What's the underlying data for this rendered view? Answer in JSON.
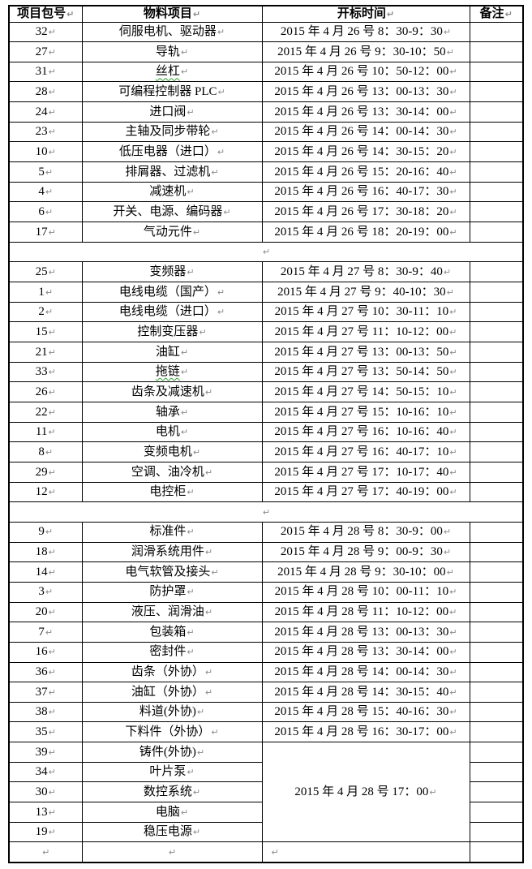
{
  "colors": {
    "border": "#000000",
    "text": "#000000",
    "paragraph_mark": "#8a8a8a",
    "spellcheck_squiggle": "#2f9e2f",
    "background": "#ffffff"
  },
  "table": {
    "mark": "↵",
    "headers": [
      "项目包号",
      "物料项目",
      "开标时间",
      "备注"
    ],
    "sections": [
      {
        "type": "data",
        "rows": [
          {
            "pkg": "32",
            "item": "伺服电机、驱动器",
            "time": "2015 年 4 月 26 号 8：30-9：30"
          },
          {
            "pkg": "27",
            "item": "导轨",
            "time": "2015 年 4 月 26 号 9：30-10：50"
          },
          {
            "pkg": "31",
            "item": "丝杠",
            "squiggle": true,
            "time": "2015 年 4 月 26 号 10：50-12：00"
          },
          {
            "pkg": "28",
            "item": "可编程控制器 PLC",
            "time": "2015 年 4 月 26 号 13：00-13：30"
          },
          {
            "pkg": "24",
            "item": "进口阀",
            "time": "2015 年 4 月 26 号 13：30-14：00"
          },
          {
            "pkg": "23",
            "item": "主轴及同步带轮",
            "time": "2015 年 4 月 26 号 14：00-14：30"
          },
          {
            "pkg": "10",
            "item": "低压电器（进口）",
            "time": "2015 年 4 月 26 号 14：30-15：20"
          },
          {
            "pkg": "5",
            "item": "排屑器、过滤机",
            "time": "2015 年 4 月 26 号 15：20-16：40"
          },
          {
            "pkg": "4",
            "item": "减速机",
            "time": "2015 年 4 月 26 号 16：40-17：30"
          },
          {
            "pkg": "6",
            "item": "开关、电源、编码器",
            "time": "2015 年 4 月 26 号 17：30-18：20"
          },
          {
            "pkg": "17",
            "item": "气动元件",
            "time": "2015 年 4 月 26 号 18：20-19：00"
          }
        ]
      },
      {
        "type": "spacer"
      },
      {
        "type": "data",
        "rows": [
          {
            "pkg": "25",
            "item": "变频器",
            "time": "2015 年 4 月 27 号 8：30-9：40"
          },
          {
            "pkg": "1",
            "item": "电线电缆（国产）",
            "time": "2015 年 4 月 27 号 9：40-10：30"
          },
          {
            "pkg": "2",
            "item": "电线电缆（进口）",
            "time": "2015 年 4 月 27 号 10：30-11：10"
          },
          {
            "pkg": "15",
            "item": "控制变压器",
            "time": "2015 年 4 月 27 号 11：10-12：00"
          },
          {
            "pkg": "21",
            "item": "油缸",
            "time": "2015 年 4 月 27 号 13：00-13：50"
          },
          {
            "pkg": "33",
            "item": "拖链",
            "squiggle": true,
            "time": "2015 年 4 月 27 号 13：50-14：50"
          },
          {
            "pkg": "26",
            "item": "齿条及减速机",
            "time": "2015 年 4 月 27 号 14：50-15：10"
          },
          {
            "pkg": "22",
            "item": "轴承",
            "time": "2015 年 4 月 27 号 15：10-16：10"
          },
          {
            "pkg": "11",
            "item": "电机",
            "time": "2015 年 4 月 27 号 16：10-16：40"
          },
          {
            "pkg": "8",
            "item": "变频电机",
            "time": "2015 年 4 月 27 号 16：40-17：10"
          },
          {
            "pkg": "29",
            "item": "空调、油冷机",
            "time": "2015 年 4 月 27 号 17：10-17：40"
          },
          {
            "pkg": "12",
            "item": "电控柜",
            "time": "2015 年 4 月 27 号 17：40-19：00"
          }
        ]
      },
      {
        "type": "spacer"
      },
      {
        "type": "data",
        "rows": [
          {
            "pkg": "9",
            "item": "标准件",
            "time": "2015 年 4 月 28 号 8：30-9：00"
          },
          {
            "pkg": "18",
            "item": "润滑系统用件",
            "time": "2015 年 4 月 28 号 9：00-9：30"
          },
          {
            "pkg": "14",
            "item": "电气软管及接头",
            "time": "2015 年 4 月 28 号 9：30-10：00"
          },
          {
            "pkg": "3",
            "item": "防护罩",
            "time": "2015 年 4 月 28 号 10：00-11：10"
          },
          {
            "pkg": "20",
            "item": "液压、润滑油",
            "time": "2015 年 4 月 28 号 11：10-12：00"
          },
          {
            "pkg": "7",
            "item": "包装箱",
            "time": "2015 年 4 月 28 号 13：00-13：30"
          },
          {
            "pkg": "16",
            "item": "密封件",
            "time": "2015 年 4 月 28 号 13：30-14：00"
          },
          {
            "pkg": "36",
            "item": "齿条（外协）",
            "time": "2015 年 4 月 28 号 14：00-14：30"
          },
          {
            "pkg": "37",
            "item": "油缸（外协）",
            "time": "2015 年 4 月 28 号 14：30-15：40"
          },
          {
            "pkg": "38",
            "item": "料道(外协)",
            "time": "2015 年 4 月 28 号 15：40-16：30"
          },
          {
            "pkg": "35",
            "item": "下料件（外协）",
            "time": "2015 年 4 月 28 号 16：30-17：00"
          }
        ]
      },
      {
        "type": "merged",
        "time": "2015 年 4 月 28 号 17：00",
        "rows": [
          {
            "pkg": "39",
            "item": "铸件(外协)"
          },
          {
            "pkg": "34",
            "item": "叶片泵"
          },
          {
            "pkg": "30",
            "item": "数控系统"
          },
          {
            "pkg": "13",
            "item": "电脑"
          },
          {
            "pkg": "19",
            "item": "稳压电源"
          }
        ]
      },
      {
        "type": "footer"
      }
    ]
  }
}
